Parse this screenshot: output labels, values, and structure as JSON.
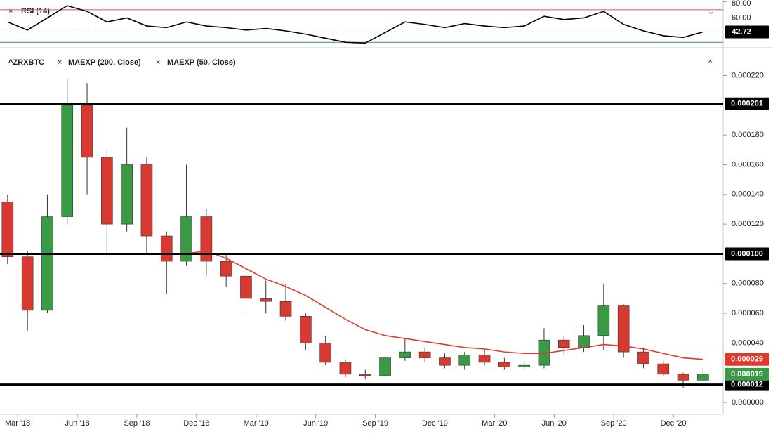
{
  "chart_data": [
    {
      "type": "candlestick",
      "legend": [
        "^ZRXBTC",
        "MAEXP (200, Close)",
        "MAEXP (50, Close)"
      ],
      "dates": [
        "2018-02",
        "2018-03",
        "2018-04",
        "2018-05",
        "2018-06",
        "2018-07",
        "2018-08",
        "2018-09",
        "2018-10",
        "2018-11",
        "2018-12",
        "2019-01",
        "2019-02",
        "2019-03",
        "2019-04",
        "2019-05",
        "2019-06",
        "2019-07",
        "2019-08",
        "2019-09",
        "2019-10",
        "2019-11",
        "2019-12",
        "2020-01",
        "2020-02",
        "2020-03",
        "2020-04",
        "2020-05",
        "2020-06",
        "2020-07",
        "2020-08",
        "2020-09",
        "2020-10",
        "2020-11",
        "2020-12",
        "2021-01"
      ],
      "open": [
        0.000135,
        9.8e-05,
        6.2e-05,
        0.000125,
        0.0002,
        0.000165,
        0.00012,
        0.00016,
        0.000112,
        9.5e-05,
        0.000125,
        9.5e-05,
        8.5e-05,
        7e-05,
        6.8e-05,
        5.8e-05,
        4e-05,
        2.7e-05,
        1.9e-05,
        1.8e-05,
        3e-05,
        3.4e-05,
        3e-05,
        2.5e-05,
        3.2e-05,
        2.7e-05,
        2.4e-05,
        2.5e-05,
        4.2e-05,
        3.7e-05,
        4.5e-05,
        6.5e-05,
        3.4e-05,
        2.6e-05,
        1.9e-05,
        1.5e-05
      ],
      "high": [
        0.00014,
        0.000102,
        0.00014,
        0.000218,
        0.000215,
        0.00017,
        0.000185,
        0.000165,
        0.000115,
        0.00016,
        0.00013,
        0.0001,
        8.8e-05,
        8.2e-05,
        8e-05,
        6e-05,
        4.5e-05,
        2.9e-05,
        2.2e-05,
        3.2e-05,
        4.3e-05,
        3.7e-05,
        3.3e-05,
        3.4e-05,
        3.5e-05,
        3e-05,
        2.8e-05,
        5e-05,
        4.5e-05,
        5.2e-05,
        8e-05,
        6.6e-05,
        3.7e-05,
        2.8e-05,
        2e-05,
        2.3e-05
      ],
      "low": [
        9.3e-05,
        4.8e-05,
        6e-05,
        0.00012,
        0.00014,
        9.8e-05,
        0.000115,
        0.0001,
        7.3e-05,
        9.2e-05,
        8.5e-05,
        7.8e-05,
        6.2e-05,
        6e-05,
        5.5e-05,
        3.5e-05,
        2.5e-05,
        1.7e-05,
        1.6e-05,
        1.7e-05,
        2.8e-05,
        2.7e-05,
        2.3e-05,
        2.2e-05,
        2.5e-05,
        2.2e-05,
        2.2e-05,
        2.3e-05,
        3.2e-05,
        3.4e-05,
        3.5e-05,
        3e-05,
        2.3e-05,
        1.8e-05,
        1e-05,
        1.4e-05
      ],
      "close": [
        9.8e-05,
        6.2e-05,
        0.000125,
        0.0002,
        0.000165,
        0.00012,
        0.00016,
        0.000112,
        9.5e-05,
        0.000125,
        9.5e-05,
        8.5e-05,
        7e-05,
        6.8e-05,
        5.8e-05,
        4e-05,
        2.7e-05,
        1.9e-05,
        1.8e-05,
        3e-05,
        3.4e-05,
        3e-05,
        2.5e-05,
        3.2e-05,
        2.7e-05,
        2.4e-05,
        2.5e-05,
        4.2e-05,
        3.7e-05,
        4.5e-05,
        6.5e-05,
        3.4e-05,
        2.6e-05,
        1.9e-05,
        1.5e-05,
        1.9e-05
      ],
      "up_color": "#3a9a45",
      "down_color": "#d63a30",
      "ma": {
        "color": "#e0392b",
        "values": [
          null,
          null,
          null,
          null,
          null,
          null,
          null,
          null,
          null,
          0.0001,
          0.000102,
          9.7e-05,
          9e-05,
          8.3e-05,
          7.8e-05,
          7.2e-05,
          6.4e-05,
          5.6e-05,
          4.9e-05,
          4.5e-05,
          4.3e-05,
          4.1e-05,
          3.9e-05,
          3.7e-05,
          3.6e-05,
          3.4e-05,
          3.3e-05,
          3.3e-05,
          3.5e-05,
          3.7e-05,
          3.9e-05,
          3.8e-05,
          3.6e-05,
          3.3e-05,
          3e-05,
          2.9e-05
        ]
      },
      "hlines": [
        {
          "value": 0.000201,
          "label": "0.000201"
        },
        {
          "value": 0.0001,
          "label": "0.000100"
        },
        {
          "value": 1.2e-05,
          "label": "0.000012"
        }
      ],
      "ma_tag": {
        "value": 2.9e-05,
        "label": "0.000029"
      },
      "price_tag": {
        "value": 1.9e-05,
        "label": "0.000019"
      },
      "ylim": [
        -8e-06,
        0.000233
      ],
      "yticks": [
        {
          "value": 0,
          "label": "0.000000"
        },
        {
          "value": 4e-05,
          "label": "0.000040"
        },
        {
          "value": 6e-05,
          "label": "0.000060"
        },
        {
          "value": 8e-05,
          "label": "0.000080"
        },
        {
          "value": 0.00012,
          "label": "0.000120"
        },
        {
          "value": 0.00014,
          "label": "0.000140"
        },
        {
          "value": 0.00016,
          "label": "0.000160"
        },
        {
          "value": 0.00018,
          "label": "0.000180"
        },
        {
          "value": 0.00022,
          "label": "0.000220"
        }
      ],
      "xticks": [
        {
          "value": "2018-03",
          "label": "Mar '18"
        },
        {
          "value": "2018-06",
          "label": "Jun '18"
        },
        {
          "value": "2018-09",
          "label": "Sep '18"
        },
        {
          "value": "2018-12",
          "label": "Dec '18"
        },
        {
          "value": "2019-03",
          "label": "Mar '19"
        },
        {
          "value": "2019-06",
          "label": "Jun '19"
        },
        {
          "value": "2019-09",
          "label": "Sep '19"
        },
        {
          "value": "2019-12",
          "label": "Dec '19"
        },
        {
          "value": "2020-03",
          "label": "Mar '20"
        },
        {
          "value": "2020-06",
          "label": "Jun '20"
        },
        {
          "value": "2020-09",
          "label": "Sep '20"
        },
        {
          "value": "2020-12",
          "label": "Dec '20"
        }
      ]
    },
    {
      "type": "line",
      "title": "RSI (14)",
      "x": [
        "2018-02",
        "2018-03",
        "2018-04",
        "2018-05",
        "2018-06",
        "2018-07",
        "2018-08",
        "2018-09",
        "2018-10",
        "2018-11",
        "2018-12",
        "2019-01",
        "2019-02",
        "2019-03",
        "2019-04",
        "2019-05",
        "2019-06",
        "2019-07",
        "2019-08",
        "2019-09",
        "2019-10",
        "2019-11",
        "2019-12",
        "2020-01",
        "2020-02",
        "2020-03",
        "2020-04",
        "2020-05",
        "2020-06",
        "2020-07",
        "2020-08",
        "2020-09",
        "2020-10",
        "2020-11",
        "2020-12",
        "2021-01"
      ],
      "values": [
        55,
        45,
        60,
        75,
        68,
        55,
        60,
        50,
        48,
        55,
        50,
        48,
        45,
        47,
        44,
        40,
        35,
        30,
        29,
        42,
        55,
        52,
        48,
        53,
        50,
        48,
        50,
        62,
        58,
        60,
        68,
        52,
        44,
        38,
        36,
        42.72
      ],
      "value_tag": 42.72,
      "color": "#000000",
      "upper": {
        "value": 70,
        "color": "#e05050"
      },
      "lower": {
        "value": 30,
        "color": "#3a9a45"
      },
      "ylim": [
        25,
        82
      ],
      "yticks": [
        {
          "value": 80,
          "label": "80.00"
        },
        {
          "value": 60,
          "label": "60.00"
        }
      ]
    }
  ]
}
